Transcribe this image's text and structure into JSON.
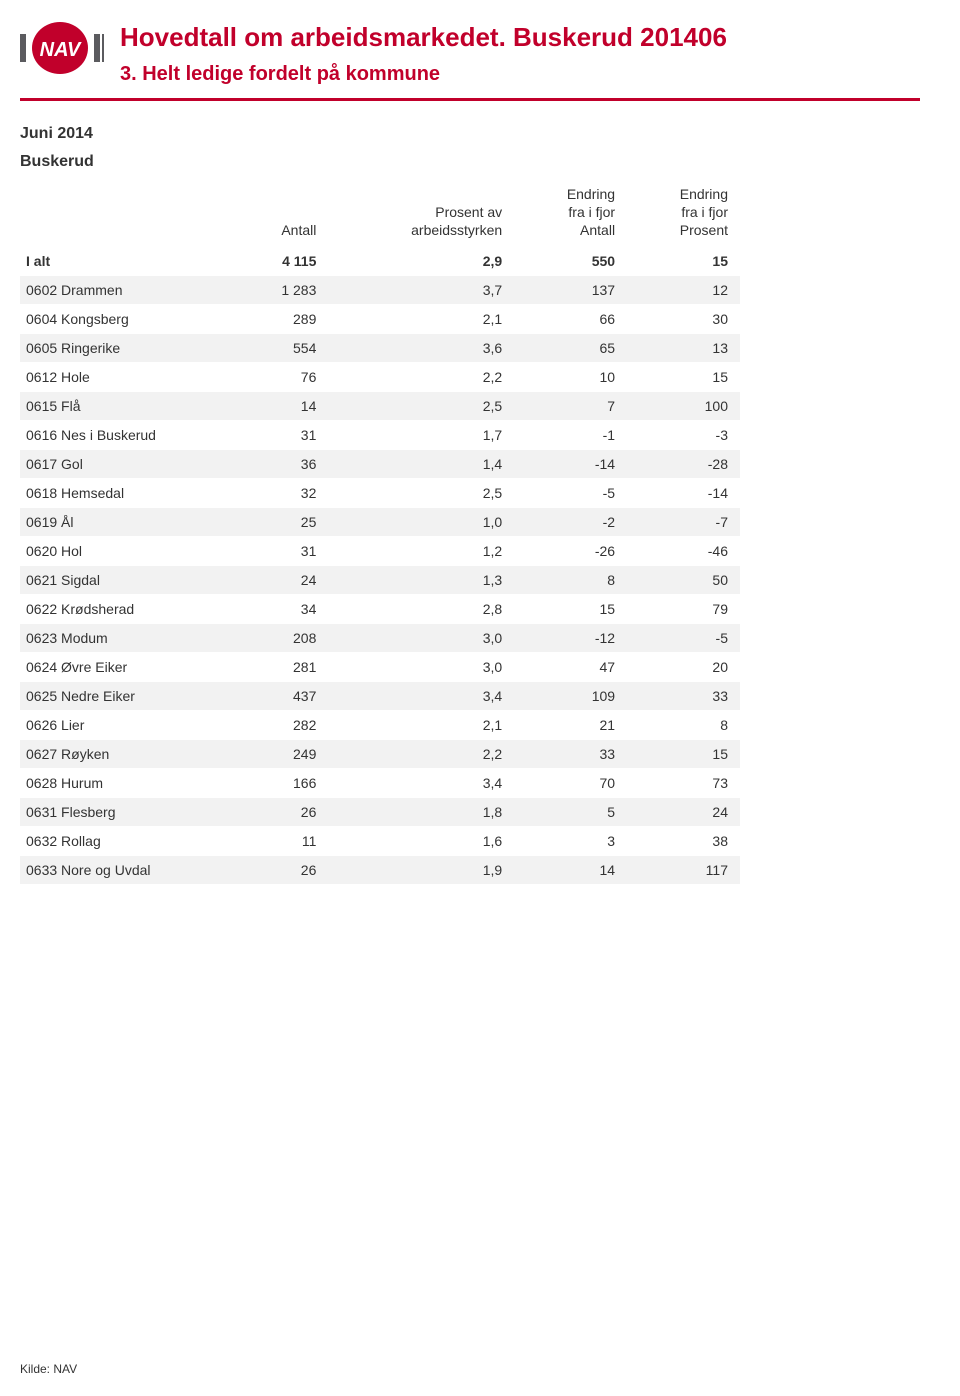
{
  "header": {
    "title": "Hovedtall om arbeidsmarkedet. Buskerud 201406",
    "subtitle": "3. Helt ledige fordelt på kommune"
  },
  "period": "Juni 2014",
  "region": "Buskerud",
  "columns": {
    "c1": "Antall",
    "c2": "Prosent av\narbeidsstyrken",
    "c3": "Endring\nfra i fjor\nAntall",
    "c4": "Endring\nfra i fjor\nProsent"
  },
  "total": {
    "label": "I alt",
    "v": [
      "4 115",
      "2,9",
      "550",
      "15"
    ]
  },
  "rows": [
    {
      "label": "0602 Drammen",
      "v": [
        "1 283",
        "3,7",
        "137",
        "12"
      ]
    },
    {
      "label": "0604 Kongsberg",
      "v": [
        "289",
        "2,1",
        "66",
        "30"
      ]
    },
    {
      "label": "0605 Ringerike",
      "v": [
        "554",
        "3,6",
        "65",
        "13"
      ]
    },
    {
      "label": "0612 Hole",
      "v": [
        "76",
        "2,2",
        "10",
        "15"
      ]
    },
    {
      "label": "0615 Flå",
      "v": [
        "14",
        "2,5",
        "7",
        "100"
      ]
    },
    {
      "label": "0616 Nes i Buskerud",
      "v": [
        "31",
        "1,7",
        "-1",
        "-3"
      ]
    },
    {
      "label": "0617 Gol",
      "v": [
        "36",
        "1,4",
        "-14",
        "-28"
      ]
    },
    {
      "label": "0618 Hemsedal",
      "v": [
        "32",
        "2,5",
        "-5",
        "-14"
      ]
    },
    {
      "label": "0619 Ål",
      "v": [
        "25",
        "1,0",
        "-2",
        "-7"
      ]
    },
    {
      "label": "0620 Hol",
      "v": [
        "31",
        "1,2",
        "-26",
        "-46"
      ]
    },
    {
      "label": "0621 Sigdal",
      "v": [
        "24",
        "1,3",
        "8",
        "50"
      ]
    },
    {
      "label": "0622 Krødsherad",
      "v": [
        "34",
        "2,8",
        "15",
        "79"
      ]
    },
    {
      "label": "0623 Modum",
      "v": [
        "208",
        "3,0",
        "-12",
        "-5"
      ]
    },
    {
      "label": "0624 Øvre Eiker",
      "v": [
        "281",
        "3,0",
        "47",
        "20"
      ]
    },
    {
      "label": "0625 Nedre Eiker",
      "v": [
        "437",
        "3,4",
        "109",
        "33"
      ]
    },
    {
      "label": "0626 Lier",
      "v": [
        "282",
        "2,1",
        "21",
        "8"
      ]
    },
    {
      "label": "0627 Røyken",
      "v": [
        "249",
        "2,2",
        "33",
        "15"
      ]
    },
    {
      "label": "0628 Hurum",
      "v": [
        "166",
        "3,4",
        "70",
        "73"
      ]
    },
    {
      "label": "0631 Flesberg",
      "v": [
        "26",
        "1,8",
        "5",
        "24"
      ]
    },
    {
      "label": "0632 Rollag",
      "v": [
        "11",
        "1,6",
        "3",
        "38"
      ]
    },
    {
      "label": "0633 Nore og Uvdal",
      "v": [
        "26",
        "1,9",
        "14",
        "117"
      ]
    }
  ],
  "footer": "Kilde: NAV",
  "colors": {
    "brand": "#c1002b",
    "row_odd_bg": "#f2f2f2",
    "row_even_bg": "#ffffff",
    "text": "#333333"
  }
}
